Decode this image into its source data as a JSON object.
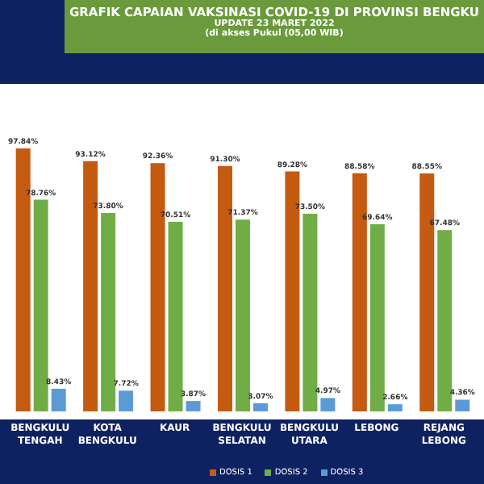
{
  "chart_data": {
    "type": "bar",
    "title": "GRAFIK CAPAIAN VAKSINASI COVID-19 DI PROVINSI BENGKU",
    "subtitle": "UPDATE 23 MARET 2022",
    "annotations": [
      "(di akses Pukul (05,00 WIB)"
    ],
    "categories": [
      "BENGKULU TENGAH",
      "KOTA BENGKULU",
      "KAUR",
      "BENGKULU SELATAN",
      "BENGKULU UTARA",
      "LEBONG",
      "REJANG LEBONG"
    ],
    "series": [
      {
        "name": "DOSIS 1",
        "color": "#c55a11",
        "values": [
          97.84,
          93.12,
          92.36,
          91.3,
          89.28,
          88.58,
          88.55
        ],
        "value_labels": [
          "97.84%",
          "93.12%",
          "92.36%",
          "91.30%",
          "89.28%",
          "88.58%",
          "88.55%"
        ]
      },
      {
        "name": "DOSIS 2",
        "color": "#70ad47",
        "values": [
          78.76,
          73.8,
          70.51,
          71.37,
          73.5,
          69.64,
          67.48
        ],
        "value_labels": [
          "78.76%",
          "73.80%",
          "70.51%",
          "71.37%",
          "73.50%",
          "69.64%",
          "67.48%"
        ]
      },
      {
        "name": "DOSIS 3",
        "color": "#5b9bd5",
        "values": [
          8.43,
          7.72,
          3.87,
          3.07,
          4.97,
          2.66,
          4.36
        ],
        "value_labels": [
          "8.43%",
          "7.72%",
          "3.87%",
          "3.07%",
          "4.97%",
          "2.66%",
          "4.36%"
        ]
      }
    ],
    "legend": "bottom"
  }
}
